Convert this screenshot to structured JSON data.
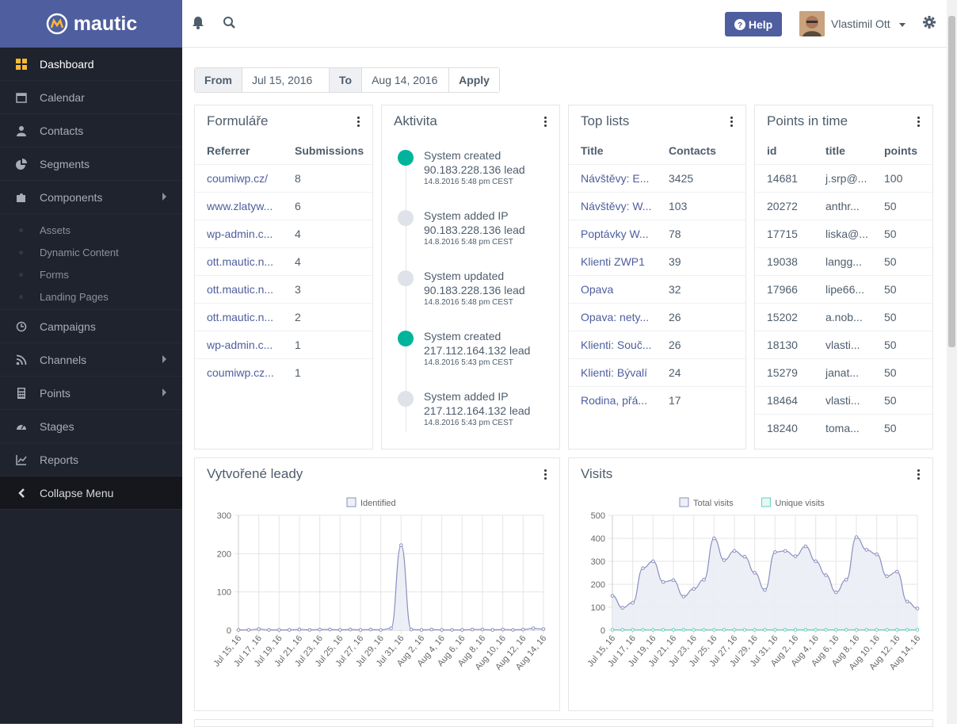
{
  "brand": {
    "name": "mautic"
  },
  "sidebar": {
    "items": [
      {
        "label": "Dashboard",
        "icon": "dashboard-icon"
      },
      {
        "label": "Calendar",
        "icon": "calendar-icon"
      },
      {
        "label": "Contacts",
        "icon": "user-icon"
      },
      {
        "label": "Segments",
        "icon": "pie-chart-icon"
      },
      {
        "label": "Components",
        "icon": "puzzle-icon"
      }
    ],
    "sub_items": [
      "Assets",
      "Dynamic Content",
      "Forms",
      "Landing Pages"
    ],
    "items2": [
      {
        "label": "Campaigns",
        "icon": "clock-icon"
      },
      {
        "label": "Channels",
        "icon": "rss-icon"
      },
      {
        "label": "Points",
        "icon": "calculator-icon"
      },
      {
        "label": "Stages",
        "icon": "tachometer-icon"
      },
      {
        "label": "Reports",
        "icon": "line-chart-icon"
      }
    ],
    "collapse": "Collapse Menu"
  },
  "topbar": {
    "help": "Help",
    "user": "Vlastimil Ott"
  },
  "datebar": {
    "from_label": "From",
    "from_value": "Jul 15, 2016",
    "to_label": "To",
    "to_value": "Aug 14, 2016",
    "apply": "Apply"
  },
  "forms": {
    "title": "Formuláře",
    "col1": "Referrer",
    "col2": "Submissions",
    "rows": [
      [
        "coumiwp.cz/",
        "8"
      ],
      [
        "www.zlatyw...",
        "6"
      ],
      [
        "wp-admin.c...",
        "4"
      ],
      [
        "ott.mautic.n...",
        "4"
      ],
      [
        "ott.mautic.n...",
        "3"
      ],
      [
        "ott.mautic.n...",
        "2"
      ],
      [
        "wp-admin.c...",
        "1"
      ],
      [
        "coumiwp.cz...",
        "1"
      ]
    ]
  },
  "activity": {
    "title": "Aktivita",
    "events": [
      {
        "line1": "System created",
        "line2": "90.183.228.136 lead",
        "time": "14.8.2016 5:48 pm CEST",
        "accent": true
      },
      {
        "line1": "System added IP",
        "line2": "90.183.228.136 lead",
        "time": "14.8.2016 5:48 pm CEST",
        "accent": false
      },
      {
        "line1": "System updated",
        "line2": "90.183.228.136 lead",
        "time": "14.8.2016 5:48 pm CEST",
        "accent": false
      },
      {
        "line1": "System created",
        "line2": "217.112.164.132 lead",
        "time": "14.8.2016 5:43 pm CEST",
        "accent": true
      },
      {
        "line1": "System added IP",
        "line2": "217.112.164.132 lead",
        "time": "14.8.2016 5:43 pm CEST",
        "accent": false
      }
    ]
  },
  "toplists": {
    "title": "Top lists",
    "col1": "Title",
    "col2": "Contacts",
    "rows": [
      [
        "Návštěvy: E...",
        "3425"
      ],
      [
        "Návštěvy: W...",
        "103"
      ],
      [
        "Poptávky W...",
        "78"
      ],
      [
        "Klienti ZWP1",
        "39"
      ],
      [
        "Opava",
        "32"
      ],
      [
        "Opava: nety...",
        "26"
      ],
      [
        "Klienti: Souč...",
        "26"
      ],
      [
        "Klienti: Bývalí",
        "24"
      ],
      [
        "Rodina, přá...",
        "17"
      ]
    ]
  },
  "points": {
    "title": "Points in time",
    "col1": "id",
    "col2": "title",
    "col3": "points",
    "rows": [
      [
        "14681",
        "j.srp@...",
        "100"
      ],
      [
        "20272",
        "anthr...",
        "50"
      ],
      [
        "17715",
        "liska@...",
        "50"
      ],
      [
        "19038",
        "langg...",
        "50"
      ],
      [
        "17966",
        "lipe66...",
        "50"
      ],
      [
        "15202",
        "a.nob...",
        "50"
      ],
      [
        "18130",
        "vlasti...",
        "50"
      ],
      [
        "15279",
        "janat...",
        "50"
      ],
      [
        "18464",
        "vlasti...",
        "50"
      ],
      [
        "18240",
        "toma...",
        "50"
      ]
    ]
  },
  "leads_card": {
    "title": "Vytvořené leady"
  },
  "visits_card": {
    "title": "Visits"
  },
  "colors": {
    "brand": "#4e5e9e",
    "accent": "#00b49c",
    "series": "#8a8fbf",
    "series_fill": "#ebedf5",
    "unique": "#5ed3c0"
  },
  "chart_data": [
    {
      "type": "area",
      "title": "Vytvořené leady",
      "x": [
        "Jul 15, 16",
        "Jul 16, 16",
        "Jul 17, 16",
        "Jul 18, 16",
        "Jul 19, 16",
        "Jul 20, 16",
        "Jul 21, 16",
        "Jul 22, 16",
        "Jul 23, 16",
        "Jul 24, 16",
        "Jul 25, 16",
        "Jul 26, 16",
        "Jul 27, 16",
        "Jul 28, 16",
        "Jul 29, 16",
        "Jul 30, 16",
        "Jul 31, 16",
        "Aug 1, 16",
        "Aug 2, 16",
        "Aug 3, 16",
        "Aug 4, 16",
        "Aug 5, 16",
        "Aug 6, 16",
        "Aug 7, 16",
        "Aug 8, 16",
        "Aug 9, 16",
        "Aug 10, 16",
        "Aug 11, 16",
        "Aug 12, 16",
        "Aug 13, 16",
        "Aug 14, 16"
      ],
      "tick_labels": [
        "Jul 15, 16",
        "Jul 17, 16",
        "Jul 19, 16",
        "Jul 21, 16",
        "Jul 23, 16",
        "Jul 25, 16",
        "Jul 27, 16",
        "Jul 29, 16",
        "Jul 31, 16",
        "Aug 2, 16",
        "Aug 4, 16",
        "Aug 6, 16",
        "Aug 8, 16",
        "Aug 10, 16",
        "Aug 12, 16",
        "Aug 14, 16"
      ],
      "series": [
        {
          "name": "Identified",
          "values": [
            1,
            1,
            3,
            1,
            1,
            1,
            2,
            1,
            2,
            2,
            1,
            2,
            1,
            2,
            1,
            5,
            222,
            2,
            1,
            2,
            1,
            1,
            1,
            2,
            2,
            1,
            2,
            1,
            2,
            5,
            3
          ]
        }
      ],
      "ylim": [
        0,
        300
      ],
      "yticks": [
        0,
        100,
        200,
        300
      ],
      "legend": "top-center",
      "grid": true
    },
    {
      "type": "area",
      "title": "Visits",
      "x": [
        "Jul 15, 16",
        "Jul 16, 16",
        "Jul 17, 16",
        "Jul 18, 16",
        "Jul 19, 16",
        "Jul 20, 16",
        "Jul 21, 16",
        "Jul 22, 16",
        "Jul 23, 16",
        "Jul 24, 16",
        "Jul 25, 16",
        "Jul 26, 16",
        "Jul 27, 16",
        "Jul 28, 16",
        "Jul 29, 16",
        "Jul 30, 16",
        "Jul 31, 16",
        "Aug 1, 16",
        "Aug 2, 16",
        "Aug 3, 16",
        "Aug 4, 16",
        "Aug 5, 16",
        "Aug 6, 16",
        "Aug 7, 16",
        "Aug 8, 16",
        "Aug 9, 16",
        "Aug 10, 16",
        "Aug 11, 16",
        "Aug 12, 16",
        "Aug 13, 16",
        "Aug 14, 16"
      ],
      "tick_labels": [
        "Jul 15, 16",
        "Jul 17, 16",
        "Jul 19, 16",
        "Jul 21, 16",
        "Jul 23, 16",
        "Jul 25, 16",
        "Jul 27, 16",
        "Jul 29, 16",
        "Jul 31, 16",
        "Aug 2, 16",
        "Aug 4, 16",
        "Aug 6, 16",
        "Aug 8, 16",
        "Aug 10, 16",
        "Aug 12, 16",
        "Aug 14, 16"
      ],
      "series": [
        {
          "name": "Total visits",
          "values": [
            150,
            98,
            120,
            270,
            300,
            210,
            218,
            147,
            180,
            220,
            400,
            305,
            345,
            320,
            250,
            175,
            340,
            345,
            322,
            365,
            300,
            240,
            165,
            220,
            405,
            350,
            330,
            235,
            255,
            125,
            95
          ]
        },
        {
          "name": "Unique visits",
          "values": [
            2,
            2,
            2,
            2,
            2,
            2,
            2,
            2,
            2,
            2,
            2,
            2,
            2,
            2,
            2,
            2,
            2,
            2,
            2,
            2,
            2,
            2,
            2,
            2,
            2,
            2,
            2,
            2,
            2,
            2,
            2
          ]
        }
      ],
      "ylim": [
        0,
        500
      ],
      "yticks": [
        0,
        100,
        200,
        300,
        400,
        500
      ],
      "legend": "top-center",
      "grid": true
    }
  ]
}
